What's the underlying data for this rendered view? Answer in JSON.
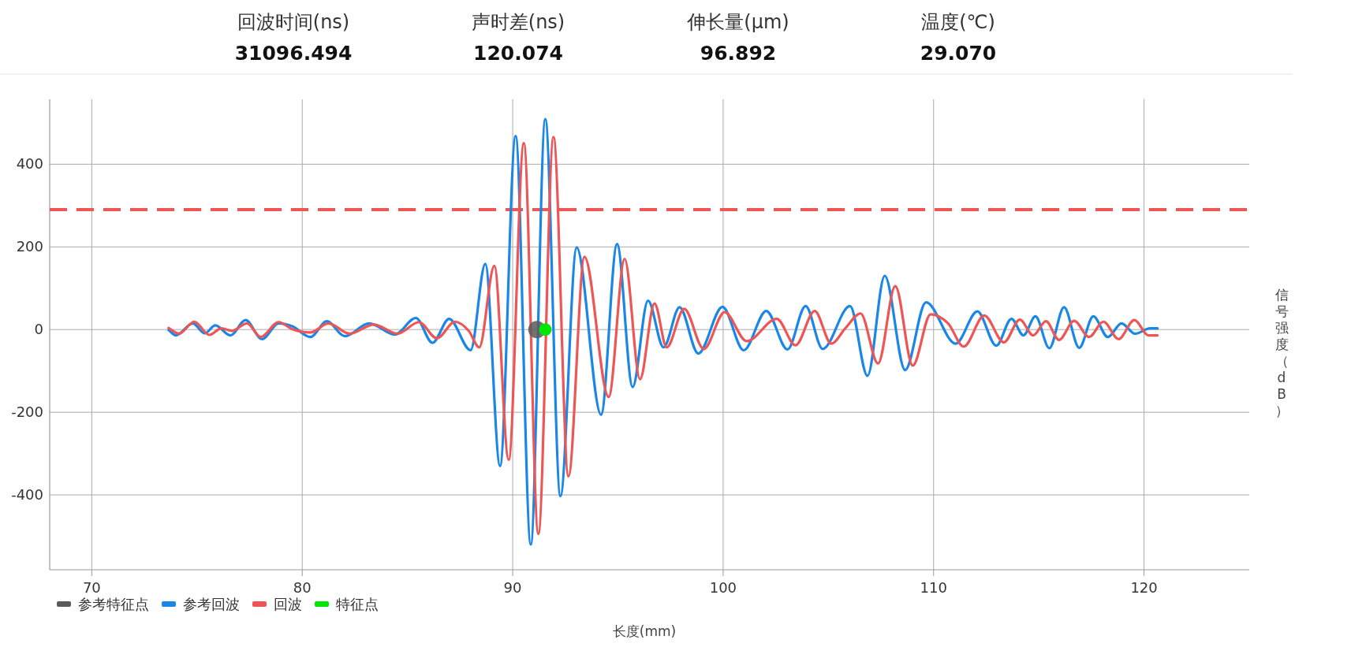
{
  "chart_data": {
    "type": "line",
    "xlabel": "长度(mm)",
    "ylabel": "信号强度（dB）",
    "annotations": [
      "回波时间(ns)",
      "31096.494",
      "声时差(ns)",
      "120.074",
      "伸长量(μm)",
      "96.892",
      "温度(℃)",
      "29.070"
    ],
    "xlim": [
      68,
      125
    ],
    "xticks": [
      70,
      80,
      90,
      100,
      110,
      120
    ],
    "ylim": [
      -581,
      557
    ],
    "yticks": [
      -400,
      -200,
      0,
      200,
      400
    ],
    "grid": true,
    "legend": "bottom left",
    "marker": "none",
    "line_style": "solid",
    "ref_lines": [
      {
        "axis": "y",
        "value": 290,
        "color": "#ee5656",
        "line_style": "dashed"
      }
    ],
    "series": [
      {
        "name": "参考特征点",
        "type": "scatter",
        "marker": "circle",
        "color": "#5a5a5a",
        "x": [
          91.15
        ],
        "values": [
          0
        ]
      },
      {
        "name": "参考回波",
        "color": "#1a86e8",
        "x": [
          73.65,
          74.0,
          74.8,
          75.37,
          75.87,
          76.59,
          77.31,
          78.09,
          78.88,
          79.53,
          80.39,
          81.17,
          82.03,
          83.18,
          84.4,
          85.4,
          86.19,
          86.98,
          88.0,
          88.7,
          89.4,
          90.14,
          90.86,
          91.55,
          92.27,
          93.04,
          94.2,
          94.96,
          95.7,
          96.43,
          97.17,
          97.93,
          98.82,
          99.97,
          100.98,
          102.05,
          103.06,
          103.92,
          104.73,
          106.03,
          106.86,
          107.68,
          108.65,
          109.64,
          111.05,
          112.08,
          112.98,
          113.7,
          114.27,
          114.84,
          115.5,
          116.2,
          116.92,
          117.59,
          118.28,
          118.93,
          119.57,
          120.29,
          120.64
        ],
        "values": [
          -1,
          -14,
          15,
          -9,
          10,
          -14,
          23,
          -23,
          15,
          8,
          -18,
          20,
          -16,
          15,
          -12,
          28,
          -32,
          26,
          -50,
          159,
          -330,
          468,
          -520,
          509,
          -403,
          199,
          -206,
          207,
          -139,
          70,
          -43,
          54,
          -58,
          55,
          -50,
          45,
          -48,
          57,
          -47,
          57,
          -112,
          130,
          -98,
          66,
          -34,
          44,
          -39,
          26,
          -14,
          32,
          -45,
          54,
          -44,
          32,
          -18,
          15,
          -10,
          3,
          3
        ]
      },
      {
        "name": "回波",
        "color": "#ee5656",
        "x": [
          73.65,
          74.15,
          74.87,
          75.59,
          76.16,
          76.66,
          77.38,
          78.02,
          78.88,
          79.53,
          80.39,
          81.25,
          82.25,
          83.4,
          84.54,
          85.54,
          86.4,
          87.26,
          87.91,
          88.41,
          89.13,
          89.81,
          90.53,
          91.22,
          91.94,
          92.65,
          93.41,
          94.56,
          95.32,
          96.05,
          96.74,
          97.32,
          98.15,
          99.08,
          100.07,
          101.12,
          102.55,
          103.44,
          104.35,
          105.14,
          105.82,
          106.53,
          107.36,
          108.18,
          109.01,
          109.86,
          110.69,
          111.43,
          112.41,
          113.34,
          114.1,
          114.73,
          115.34,
          115.96,
          116.68,
          117.39,
          118.07,
          118.79,
          119.54,
          120.21,
          120.64
        ],
        "values": [
          4,
          -10,
          19,
          -13,
          3,
          -3,
          15,
          -18,
          18,
          1,
          -7,
          15,
          -10,
          12,
          -10,
          18,
          -21,
          19,
          -3,
          -43,
          154,
          -315,
          451,
          -494,
          466,
          -355,
          176,
          -163,
          171,
          -120,
          63,
          -43,
          50,
          -47,
          42,
          -28,
          26,
          -38,
          45,
          -34,
          4,
          39,
          -82,
          105,
          -87,
          37,
          15,
          -41,
          34,
          -31,
          24,
          -14,
          20,
          -25,
          21,
          -18,
          19,
          -23,
          23,
          -14,
          -14
        ]
      },
      {
        "name": "特征点",
        "type": "scatter",
        "marker": "circle",
        "color": "#00e600",
        "x": [
          91.55
        ],
        "values": [
          0
        ]
      }
    ]
  }
}
